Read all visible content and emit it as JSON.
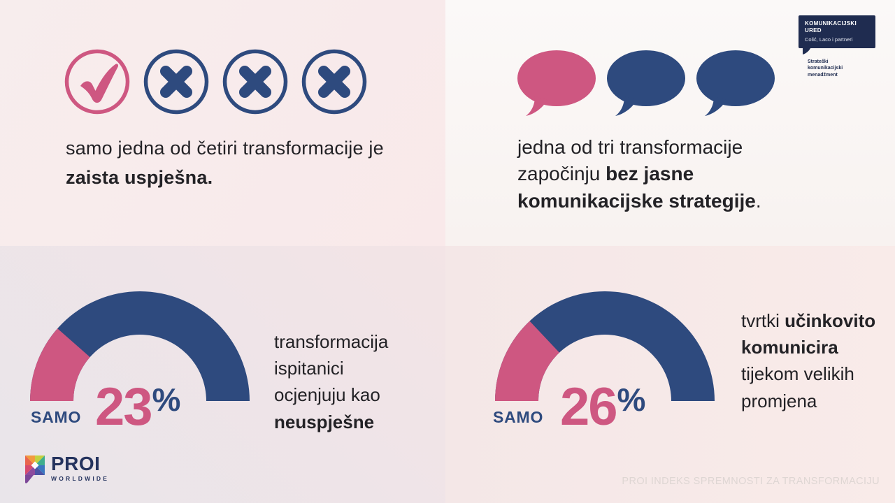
{
  "colors": {
    "pink": "#ce5781",
    "blue": "#2e4a7e",
    "navy": "#1f2c50",
    "text_dark": "#232226",
    "footer_text": "#ded6d3"
  },
  "top_left": {
    "icons": [
      "check",
      "cross",
      "cross",
      "cross"
    ],
    "statement": {
      "normal": "samo jedna od četiri transformacije je ",
      "bold": "zaista uspješna."
    }
  },
  "top_right": {
    "bubbles": [
      "pink",
      "blue",
      "blue"
    ],
    "statement": {
      "normal": "jedna od tri transformacije započinju ",
      "bold": "bez jasne komunikacijske strategije",
      "suffix": "."
    },
    "logo": {
      "title": "KOMUNIKACIJSKI URED",
      "subtitle": "Colić, Laco i partneri",
      "tagline": "Strateški\nkomunikacijski\nmenadžment"
    }
  },
  "chart_data": [
    {
      "type": "gauge",
      "position": "bottom-left",
      "label": "SAMO",
      "value": 23,
      "unit": "%",
      "min": 0,
      "max": 100,
      "shape": "semicircle-donut",
      "start_angle_deg": 180,
      "end_angle_deg": 0,
      "value_color": "#ce5781",
      "track_color": "#2e4a7e",
      "annotation": "transformacija ispitanici ocjenjuju kao neuspješne"
    },
    {
      "type": "gauge",
      "position": "bottom-right",
      "label": "SAMO",
      "value": 26,
      "unit": "%",
      "min": 0,
      "max": 100,
      "shape": "semicircle-donut",
      "start_angle_deg": 180,
      "end_angle_deg": 0,
      "value_color": "#ce5781",
      "track_color": "#2e4a7e",
      "annotation": "tvrtki učinkovito komunicira tijekom velikih promjena"
    }
  ],
  "bottom_left": {
    "description": {
      "normal": "transformacija ispitanici ocjenjuju kao ",
      "bold": "neuspješne"
    }
  },
  "bottom_right": {
    "description": {
      "prefix": "tvrtki ",
      "bold": "učinkovito komunicira",
      "suffix": " tijekom velikih promjena"
    }
  },
  "footer": {
    "brand": "PROI",
    "brand_sub": "WORLDWIDE",
    "right_text": "PROI INDEKS SPREMNOSTI ZA TRANSFORMACIJU"
  }
}
